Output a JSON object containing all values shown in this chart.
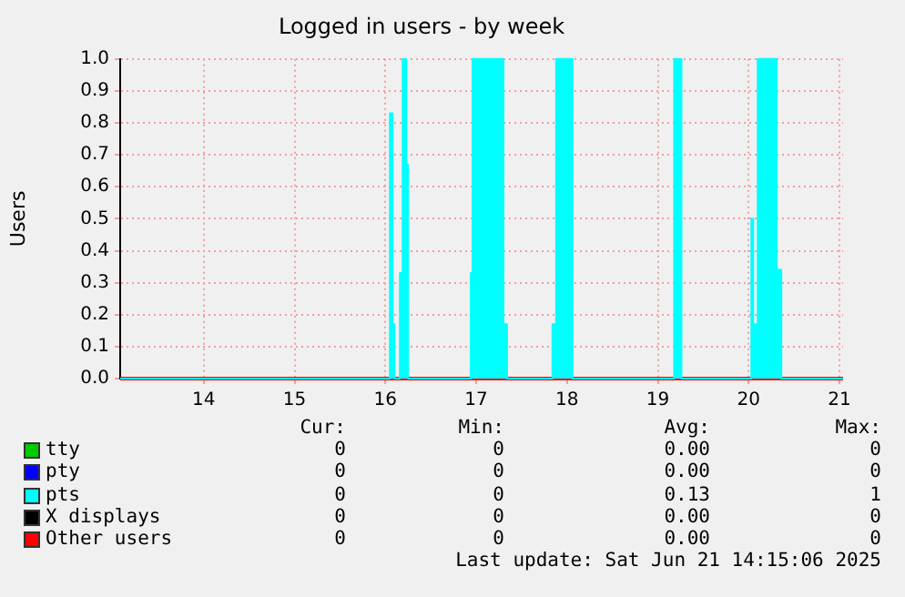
{
  "chart_data": {
    "type": "area",
    "title": "Logged in users - by week",
    "ylabel": "Users",
    "xlim": [
      13.08,
      21.04
    ],
    "xticks": [
      14,
      15,
      16,
      17,
      18,
      19,
      20,
      21
    ],
    "ylim": [
      0,
      1
    ],
    "yticks": [
      {
        "value": 0,
        "label": "0.0"
      },
      0.1,
      0.2,
      0.3,
      0.4,
      0.5,
      0.6,
      0.7,
      0.8,
      0.9,
      {
        "value": 1,
        "label": "1.0"
      }
    ],
    "grid": true,
    "legend": "bottom",
    "marker": "none",
    "series": [
      {
        "name": "tty",
        "type": "line",
        "color": "#00cc00"
      },
      {
        "name": "pty",
        "type": "line",
        "color": "#0000ff"
      },
      {
        "name": "pts",
        "color": "#00ffff",
        "x": [
          13.08,
          16.05,
          16.05,
          16.08,
          16.08,
          16.1,
          16.1,
          16.16,
          16.16,
          16.19,
          16.19,
          16.23,
          16.23,
          16.25,
          16.25,
          16.94,
          16.94,
          16.96,
          16.96,
          17.3,
          17.3,
          17.34,
          17.34,
          17.84,
          17.84,
          17.88,
          17.88,
          18.06,
          18.06,
          19.18,
          19.18,
          19.26,
          19.26,
          20.03,
          20.03,
          20.05,
          20.05,
          20.1,
          20.1,
          20.31,
          20.31,
          20.36,
          20.36,
          21.04
        ],
        "values": [
          0,
          0,
          0.83,
          0.83,
          0.17,
          0.17,
          0,
          0,
          0.33,
          0.33,
          1,
          1,
          0.67,
          0.67,
          0,
          0,
          0.33,
          0.33,
          1,
          1,
          0.17,
          0.17,
          0,
          0,
          0.17,
          0.17,
          1,
          1,
          0,
          0,
          1,
          1,
          0,
          0,
          0.5,
          0.5,
          0.17,
          0.17,
          1,
          1,
          0.34,
          0.34,
          0,
          0
        ]
      },
      {
        "name": "X displays",
        "type": "line",
        "color": "#000000"
      },
      {
        "name": "Other users",
        "type": "line",
        "color": "#ff0000",
        "x": [
          13.08,
          21.04
        ],
        "values": [
          0,
          0
        ]
      }
    ],
    "annotations": [
      "Cur:",
      "Min:",
      "Avg:",
      "Max:",
      "0",
      "0",
      "0.00",
      "0",
      "0",
      "0",
      "0.00",
      "0",
      "0",
      "0",
      "0.13",
      "1",
      "0",
      "0",
      "0.00",
      "0",
      "0",
      "0",
      "0.00",
      "0",
      "Last update: Sat Jun 21 14:15:06 2025"
    ]
  }
}
